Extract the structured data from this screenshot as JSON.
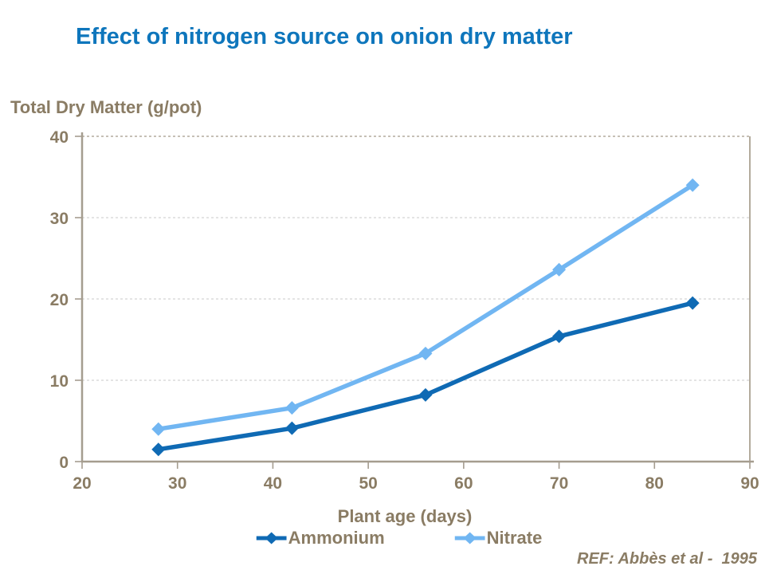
{
  "title": {
    "text": "Effect of nitrogen source on onion dry matter",
    "color": "#0e76bc"
  },
  "ref_note": "REF: Abbès et al -  1995",
  "colors": {
    "background": "#ffffff",
    "axis_text": "#8a7c64",
    "axis_line": "#a59d8f",
    "plot_border": "#b3ab9d",
    "gridline": "#c9c9c9"
  },
  "chart_data": {
    "type": "line",
    "title": "Effect of nitrogen source on onion dry matter",
    "xlabel": "Plant age (days)",
    "ylabel": "Total Dry Matter (g/pot)",
    "x": [
      28,
      42,
      56,
      70,
      84
    ],
    "series": [
      {
        "name": "Ammonium",
        "color": "#0f6ab4",
        "marker": "diamond",
        "values": [
          1.5,
          4.1,
          8.2,
          15.4,
          19.5
        ]
      },
      {
        "name": "Nitrate",
        "color": "#71b6f2",
        "marker": "diamond",
        "values": [
          4.0,
          6.6,
          13.3,
          23.6,
          34.0
        ]
      }
    ],
    "xlim": [
      20,
      90
    ],
    "ylim": [
      0,
      40
    ],
    "xticks": [
      20,
      30,
      40,
      50,
      60,
      70,
      80,
      90
    ],
    "yticks": [
      0,
      10,
      20,
      30,
      40
    ],
    "grid": "horizontal-dashed",
    "legend_position": "bottom-center"
  }
}
